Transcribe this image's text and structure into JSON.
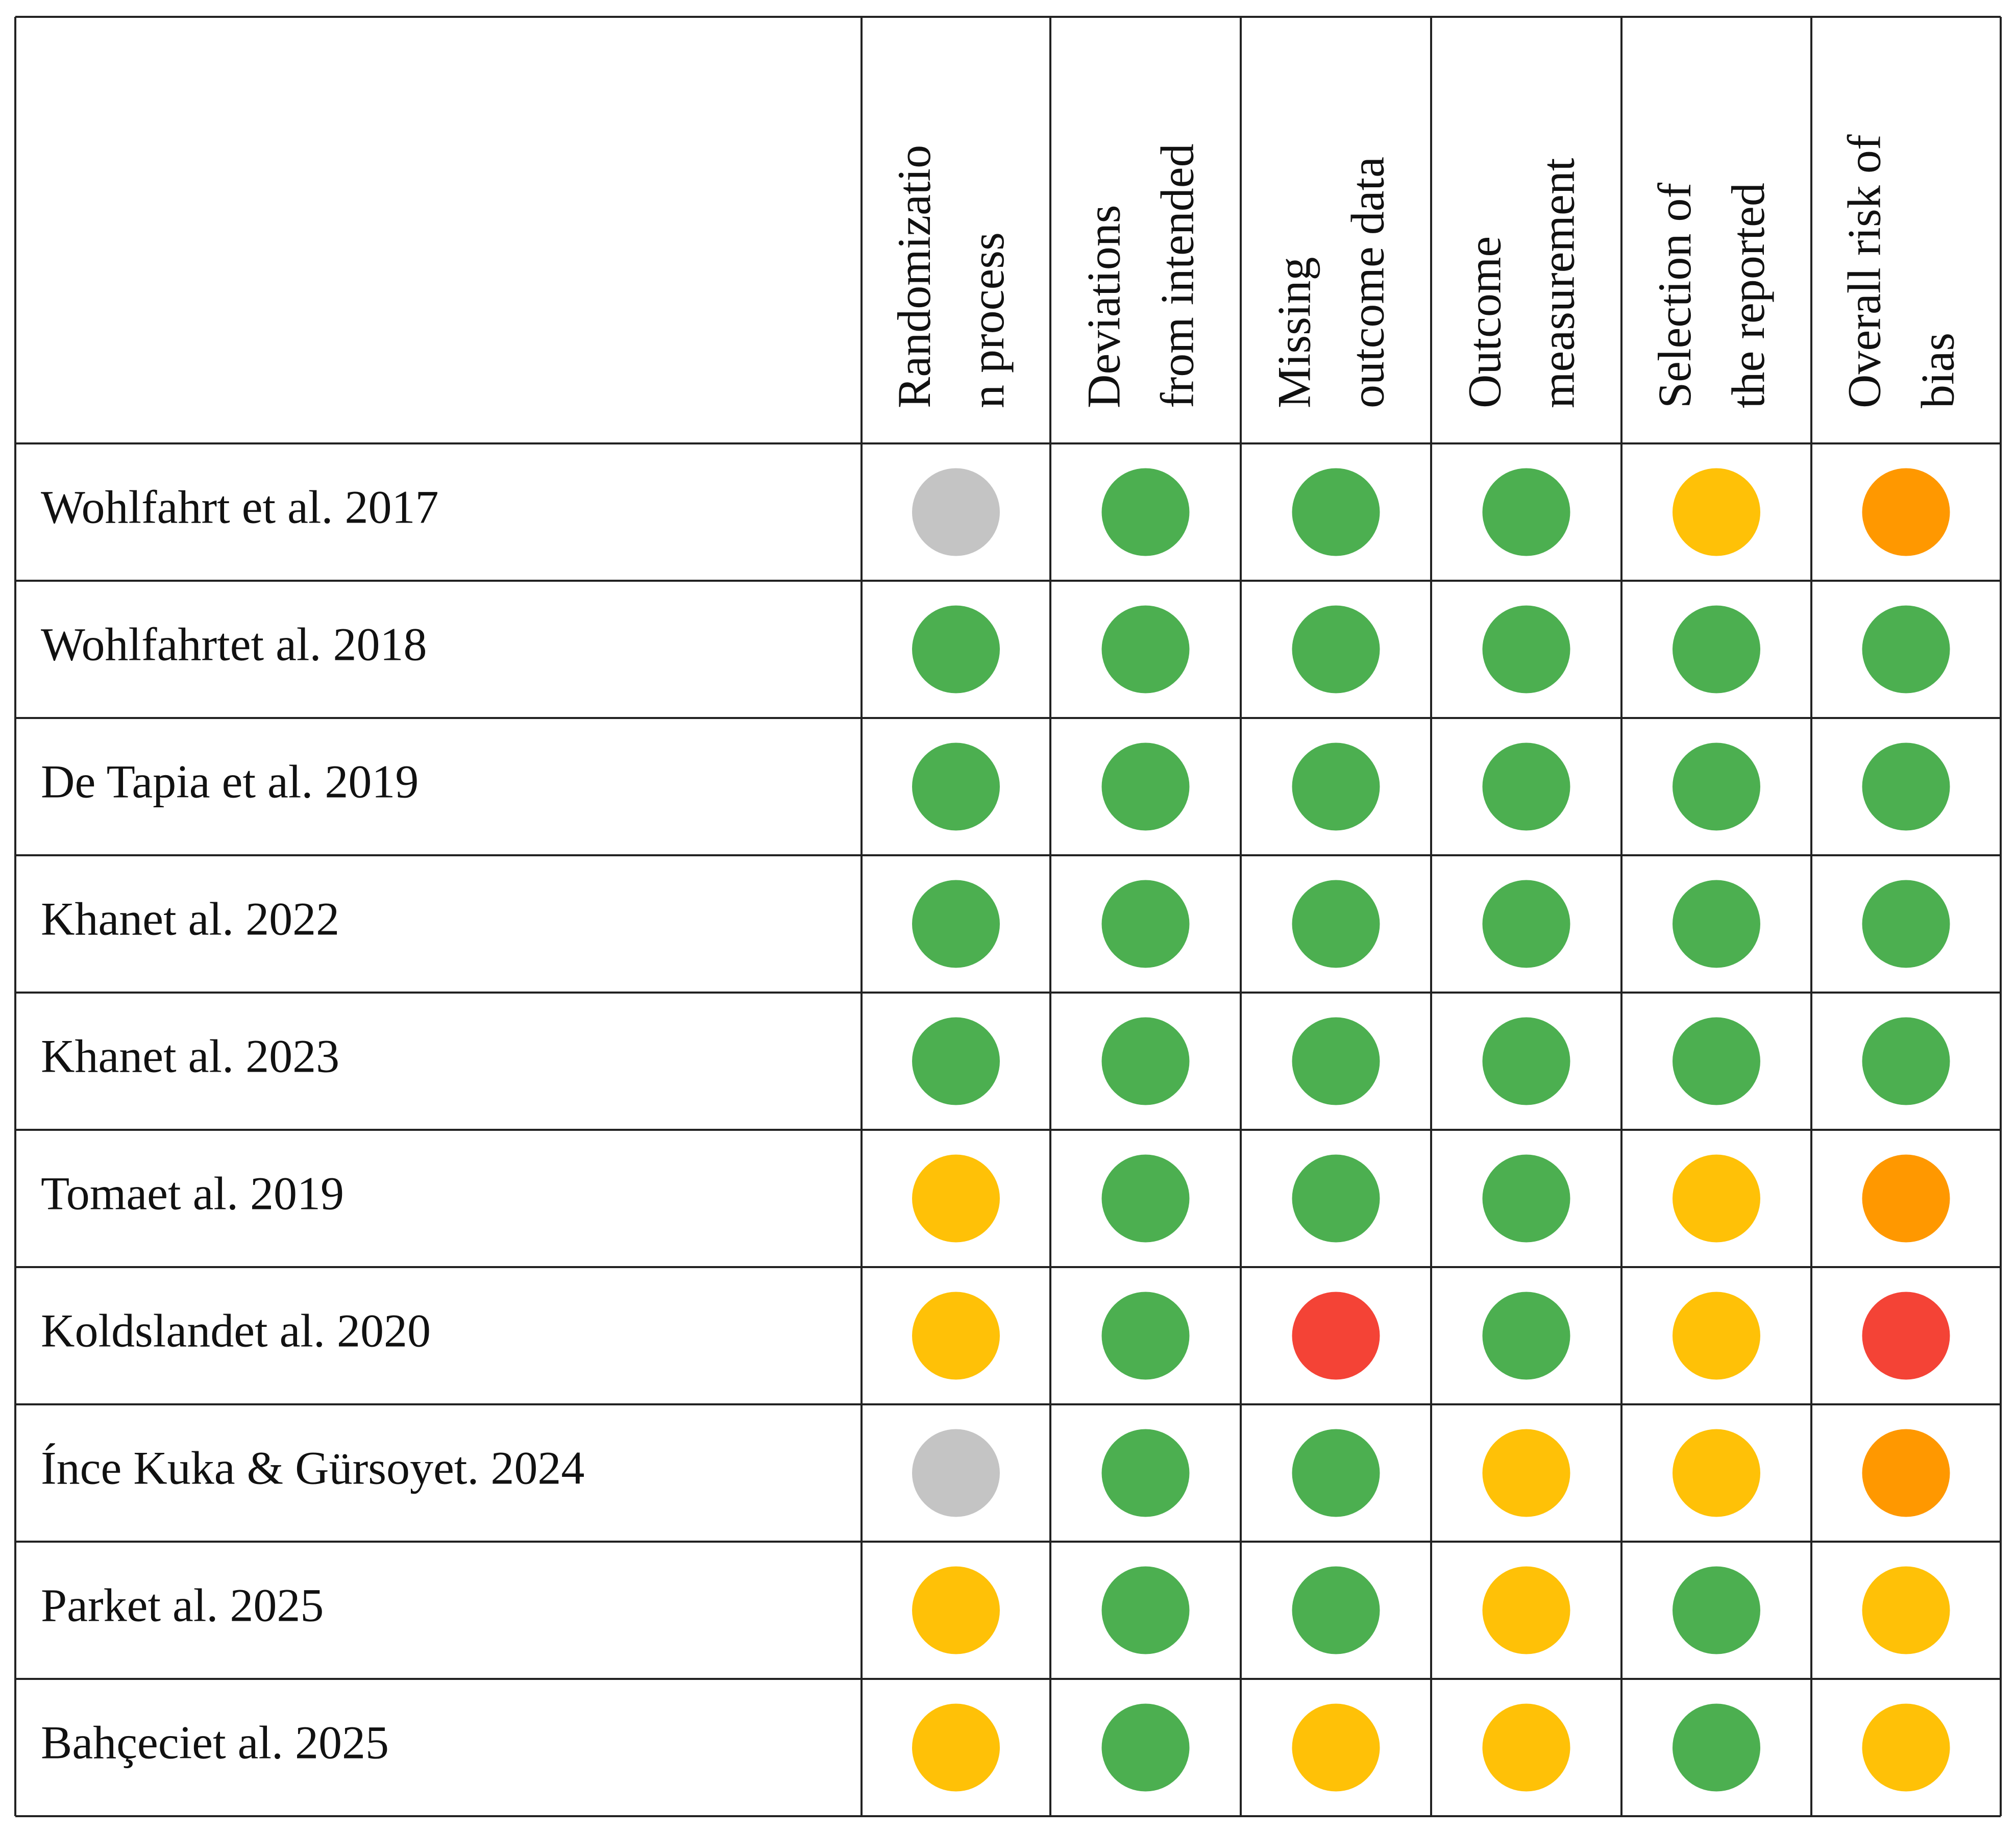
{
  "table": {
    "headers": [
      [
        "Randomizatio",
        "n process"
      ],
      [
        "Deviations",
        "from intended"
      ],
      [
        "Missing",
        "outcome data"
      ],
      [
        "Outcome",
        "measurement"
      ],
      [
        "Selection of",
        "the reported"
      ],
      [
        "Overall risk of",
        "bias"
      ]
    ],
    "rows": [
      {
        "study": "Wohlfahrt et al. 2017",
        "colors": [
          "#c4c4c4",
          "#4caf50",
          "#4caf50",
          "#4caf50",
          "#ffc107",
          "#ff9800"
        ]
      },
      {
        "study": "Wohlfahrtet al. 2018",
        "colors": [
          "#4caf50",
          "#4caf50",
          "#4caf50",
          "#4caf50",
          "#4caf50",
          "#4caf50"
        ]
      },
      {
        "study": "De Tapia et al. 2019",
        "colors": [
          "#4caf50",
          "#4caf50",
          "#4caf50",
          "#4caf50",
          "#4caf50",
          "#4caf50"
        ]
      },
      {
        "study": "Khanet al. 2022",
        "colors": [
          "#4caf50",
          "#4caf50",
          "#4caf50",
          "#4caf50",
          "#4caf50",
          "#4caf50"
        ]
      },
      {
        "study": "Khanet al. 2023",
        "colors": [
          "#4caf50",
          "#4caf50",
          "#4caf50",
          "#4caf50",
          "#4caf50",
          "#4caf50"
        ]
      },
      {
        "study": "Tomaet al. 2019",
        "colors": [
          "#ffc107",
          "#4caf50",
          "#4caf50",
          "#4caf50",
          "#ffc107",
          "#ff9800"
        ]
      },
      {
        "study": "Koldslandet al. 2020",
        "colors": [
          "#ffc107",
          "#4caf50",
          "#f44336",
          "#4caf50",
          "#ffc107",
          "#f44336"
        ]
      },
      {
        "study": "Ínce Kuka & Gürsoyet. 2024",
        "colors": [
          "#c4c4c4",
          "#4caf50",
          "#4caf50",
          "#ffc107",
          "#ffc107",
          "#ff9800"
        ]
      },
      {
        "study": "Parket al. 2025",
        "colors": [
          "#ffc107",
          "#4caf50",
          "#4caf50",
          "#ffc107",
          "#4caf50",
          "#ffc107"
        ]
      },
      {
        "study": "Bahçeciet al. 2025",
        "colors": [
          "#ffc107",
          "#4caf50",
          "#ffc107",
          "#ffc107",
          "#4caf50",
          "#ffc107"
        ]
      }
    ]
  }
}
